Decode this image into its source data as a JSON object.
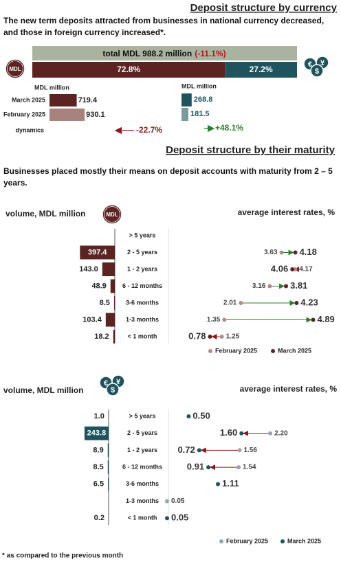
{
  "currency_section": {
    "title": "Deposit structure by currency",
    "text": "The new term deposits attracted from businesses in national currency decreased, and those in foreign currency increased*.",
    "badge": "MDL",
    "currency_symbols": [
      "€",
      "$",
      "¥"
    ],
    "total_label": "total MDL 988.2 million",
    "total_change": "(-11.1%)",
    "shares": {
      "values": [
        72.8,
        27.2
      ],
      "value_labels": [
        "72.8%",
        "27.2%"
      ],
      "colors": [
        "#5c2323",
        "#1f545e"
      ]
    },
    "unit_label": "MDL million",
    "periods": [
      "March 2025",
      "February 2025"
    ],
    "dynamics_label": "dynamics",
    "national": {
      "values": [
        719.4,
        930.1
      ],
      "colors": [
        "#5c2323",
        "#a8837e"
      ],
      "dynamics": "-22.7%",
      "dynamics_color": "#8b1a1a"
    },
    "foreign": {
      "values": [
        268.8,
        181.5
      ],
      "colors": [
        "#1f545e",
        "#7a9a9e"
      ],
      "dynamics": "+48.1%",
      "dynamics_color": "#2e7d2e"
    }
  },
  "maturity_section": {
    "title": "Deposit structure by their maturity",
    "text": "Businesses placed mostly their means on deposit accounts with maturity from 2 – 5 years.",
    "panels": [
      {
        "volume_label": "volume, MDL million",
        "rates_label": "average interest rates, %",
        "categories": [
          "> 5 years",
          "2 - 5 years",
          "1 - 2 years",
          "6 - 12 months",
          "3-6 months",
          "1-3 months",
          "< 1 month"
        ],
        "volumes": {
          "values": [
            null,
            397.4,
            143.0,
            48.9,
            8.5,
            103.4,
            18.2
          ],
          "value_labels": [
            null,
            "397.4",
            "143.0",
            "48.9",
            "8.5",
            "103.4",
            "18.2"
          ],
          "color": "#5c2323",
          "xlim": [
            0,
            400
          ]
        },
        "rates": {
          "xlim": [
            0,
            5
          ],
          "series": [
            {
              "name": "February 2025",
              "color": "#b38c87",
              "values": [
                null,
                3.63,
                4.17,
                3.16,
                2.01,
                1.35,
                1.25
              ],
              "value_labels": [
                null,
                "3.63",
                "4.17",
                "3.16",
                "2.01",
                "1.35",
                "1.25"
              ]
            },
            {
              "name": "March 2025",
              "color": "#5c2323",
              "values": [
                null,
                4.18,
                4.06,
                3.81,
                4.23,
                4.89,
                0.78
              ],
              "value_labels": [
                null,
                "4.18",
                "4.06",
                "3.81",
                "4.23",
                "4.89",
                "0.78"
              ]
            }
          ]
        }
      },
      {
        "volume_label": "volume, MDL million",
        "rates_label": "average interest rates, %",
        "categories": [
          "> 5 years",
          "2 - 5 years",
          "1 - 2 years",
          "6 - 12 months",
          "3-6 months",
          "1-3 months",
          "< 1 month"
        ],
        "volumes": {
          "values": [
            1.0,
            243.8,
            8.9,
            8.5,
            6.5,
            null,
            0.2
          ],
          "value_labels": [
            "1.0",
            "243.8",
            "8.9",
            "8.5",
            "6.5",
            null,
            "0.2"
          ],
          "color": "#1f545e",
          "xlim": [
            0,
            250
          ]
        },
        "rates": {
          "xlim": [
            0,
            3
          ],
          "series": [
            {
              "name": "February 2025",
              "color": "#8fa9ab",
              "values": [
                null,
                2.2,
                1.56,
                1.54,
                null,
                0.05,
                null
              ],
              "value_labels": [
                null,
                "2.20",
                "1.56",
                "1.54",
                null,
                "0.05",
                null
              ]
            },
            {
              "name": "March 2025",
              "color": "#1f545e",
              "values": [
                0.5,
                1.6,
                0.72,
                0.91,
                1.11,
                null,
                0.05
              ],
              "value_labels": [
                "0.50",
                "1.60",
                "0.72",
                "0.91",
                "1.11",
                null,
                "0.05"
              ]
            }
          ]
        }
      }
    ]
  },
  "footnote": "* as compared to the previous month"
}
